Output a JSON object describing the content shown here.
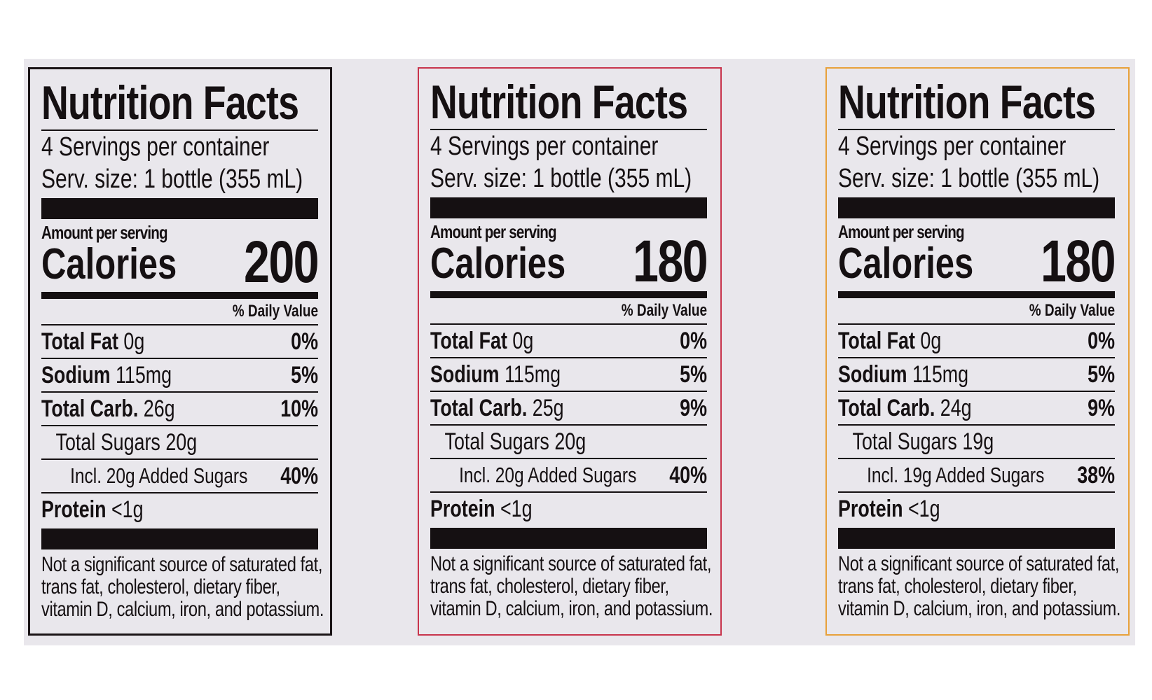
{
  "labels": [
    {
      "title": "Nutrition Facts",
      "servings": "4 Servings per container",
      "serving_size": "Serv. size: 1 bottle (355 mL)",
      "amount_label": "Amount per serving",
      "calories_label": "Calories",
      "calories": "200",
      "dv_header": "% Daily Value",
      "rows": [
        {
          "name": "Total Fat",
          "amount": "0g",
          "dv": "0%"
        },
        {
          "name": "Sodium",
          "amount": "115mg",
          "dv": "5%"
        },
        {
          "name": "Total Carb.",
          "amount": "26g",
          "dv": "10%",
          "sub": [
            {
              "name": "Total Sugars",
              "amount": "20g",
              "sub": [
                {
                  "name": "Incl. 20g Added Sugars",
                  "dv": "40%"
                }
              ]
            }
          ]
        },
        {
          "name": "Protein",
          "amount": "<1g"
        }
      ],
      "footnote": [
        "Not a significant source of saturated fat,",
        "trans fat, cholesterol, dietary fiber,",
        "vitamin D, calcium, iron, and potassium."
      ]
    },
    {
      "title": "Nutrition Facts",
      "servings": "4 Servings per container",
      "serving_size": "Serv. size: 1 bottle (355 mL)",
      "amount_label": "Amount per serving",
      "calories_label": "Calories",
      "calories": "180",
      "dv_header": "% Daily Value",
      "rows": [
        {
          "name": "Total Fat",
          "amount": "0g",
          "dv": "0%"
        },
        {
          "name": "Sodium",
          "amount": "115mg",
          "dv": "5%"
        },
        {
          "name": "Total Carb.",
          "amount": "25g",
          "dv": "9%",
          "sub": [
            {
              "name": "Total Sugars",
              "amount": "20g",
              "sub": [
                {
                  "name": "Incl. 20g Added Sugars",
                  "dv": "40%"
                }
              ]
            }
          ]
        },
        {
          "name": "Protein",
          "amount": "<1g"
        }
      ],
      "footnote": [
        "Not a significant source of saturated fat,",
        "trans fat, cholesterol, dietary fiber,",
        "vitamin D, calcium, iron, and potassium."
      ]
    },
    {
      "title": "Nutrition Facts",
      "servings": "4 Servings per container",
      "serving_size": "Serv. size: 1 bottle (355 mL)",
      "amount_label": "Amount per serving",
      "calories_label": "Calories",
      "calories": "180",
      "dv_header": "% Daily Value",
      "rows": [
        {
          "name": "Total Fat",
          "amount": "0g",
          "dv": "0%"
        },
        {
          "name": "Sodium",
          "amount": "115mg",
          "dv": "5%"
        },
        {
          "name": "Total Carb.",
          "amount": "24g",
          "dv": "9%",
          "sub": [
            {
              "name": "Total Sugars",
              "amount": "19g",
              "sub": [
                {
                  "name": "Incl. 19g Added Sugars",
                  "dv": "38%"
                }
              ]
            }
          ]
        },
        {
          "name": "Protein",
          "amount": "<1g"
        }
      ],
      "footnote": [
        "Not a significant source of saturated fat,",
        "trans fat, cholesterol, dietary fiber,",
        "vitamin D, calcium, iron, and potassium."
      ]
    }
  ]
}
